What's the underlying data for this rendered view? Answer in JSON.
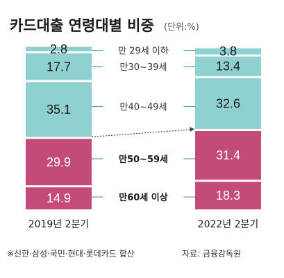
{
  "chart_data": {
    "type": "bar",
    "stacked": true,
    "title": "카드대출 연령대별 비중",
    "unit": "(단위:%)",
    "categories": [
      "2019년 2분기",
      "2022년 2분기"
    ],
    "series": [
      {
        "name": "만60세 이상",
        "values": [
          14.9,
          18.3
        ],
        "color": "#c44a7a",
        "label_bold": true
      },
      {
        "name": "만50~59세",
        "values": [
          29.9,
          31.4
        ],
        "color": "#c44a7a",
        "label_bold": true
      },
      {
        "name": "만40~49세",
        "values": [
          35.1,
          32.6
        ],
        "color": "#8fd0d0",
        "label_bold": false
      },
      {
        "name": "만30~39세",
        "values": [
          17.7,
          13.4
        ],
        "color": "#8fd0d0",
        "label_bold": false
      },
      {
        "name": "만 29세 이하",
        "values": [
          2.8,
          3.8
        ],
        "color": "#8fd0d0",
        "label_bold": false
      }
    ],
    "value_labels": [
      "14.9",
      "18.3",
      "29.9",
      "31.4",
      "35.1",
      "32.6",
      "17.7",
      "13.4",
      "2.8",
      "3.8"
    ],
    "notes": {
      "left": "※신한·삼성·국민·현대·롯데카드 합산",
      "right": "자료: 금융감독원"
    },
    "colors": {
      "old_segments": "#c44a7a",
      "young_segments": "#8fd0d0",
      "guide_line": "#2c8c8c"
    }
  }
}
